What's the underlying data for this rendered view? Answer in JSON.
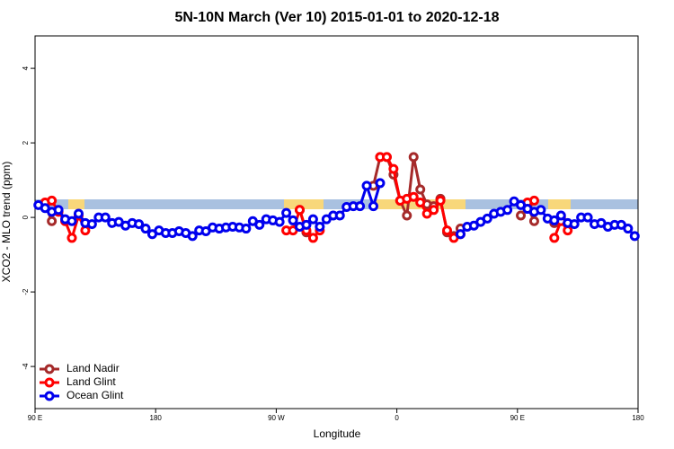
{
  "chart_data": {
    "type": "line",
    "title": "5N-10N March (Ver 10)   2015-01-01 to 2020-12-18",
    "x_label": "Longitude",
    "y_label": "XCO2 - MLO trend (ppm)",
    "xlim": [
      90,
      540
    ],
    "xticks": [
      {
        "value": 90,
        "label": "90 E"
      },
      180,
      {
        "value": 270,
        "label": "90 W"
      },
      {
        "value": 360,
        "label": "0"
      },
      {
        "value": 450,
        "label": "90 E"
      },
      {
        "value": 540,
        "label": "180"
      }
    ],
    "ylim": [
      -5.13,
      4.87
    ],
    "yticks": [
      -4,
      -2,
      0,
      2,
      4
    ],
    "legend": "bottomleft",
    "x": [
      92.5,
      97.5,
      102.5,
      107.5,
      112.5,
      117.5,
      122.5,
      127.5,
      132.5,
      137.5,
      142.5,
      147.5,
      152.5,
      157.5,
      162.5,
      167.5,
      172.5,
      177.5,
      182.5,
      187.5,
      192.5,
      197.5,
      202.5,
      207.5,
      212.5,
      217.5,
      222.5,
      227.5,
      232.5,
      237.5,
      242.5,
      247.5,
      252.5,
      257.5,
      262.5,
      267.5,
      272.5,
      277.5,
      282.5,
      287.5,
      292.5,
      297.5,
      302.5,
      307.5,
      312.5,
      317.5,
      322.5,
      327.5,
      332.5,
      337.5,
      342.5,
      347.5,
      352.5,
      357.5,
      362.5,
      367.5,
      372.5,
      377.5,
      382.5,
      387.5,
      392.5,
      397.5,
      402.5,
      407.5,
      412.5,
      417.5,
      422.5,
      427.5,
      432.5,
      437.5,
      442.5,
      447.5,
      452.5,
      457.5,
      462.5,
      467.5,
      472.5,
      477.5,
      482.5,
      487.5,
      492.5,
      497.5,
      502.5,
      507.5,
      512.5,
      517.5,
      522.5,
      527.5,
      532.5,
      537.5
    ],
    "series": [
      {
        "name": "Land Nadir",
        "color": "#a52a2a",
        "values": [
          null,
          0.35,
          -0.1,
          null,
          null,
          null,
          null,
          null,
          null,
          null,
          null,
          null,
          null,
          null,
          null,
          null,
          null,
          null,
          null,
          null,
          null,
          null,
          null,
          null,
          null,
          null,
          null,
          null,
          null,
          null,
          null,
          null,
          null,
          null,
          null,
          null,
          null,
          null,
          null,
          0.2,
          -0.4,
          null,
          null,
          null,
          null,
          null,
          null,
          null,
          null,
          null,
          0.85,
          1.62,
          1.62,
          1.15,
          0.45,
          0.05,
          1.62,
          0.75,
          0.35,
          0.3,
          0.5,
          -0.4,
          -0.5,
          -0.3,
          null,
          null,
          null,
          null,
          null,
          null,
          null,
          null,
          0.05,
          0.3,
          -0.1,
          null,
          null,
          -0.15,
          0,
          null,
          null,
          null,
          null,
          null,
          null,
          null,
          null,
          null,
          null,
          null
        ]
      },
      {
        "name": "Land Glint",
        "color": "#ff0000",
        "values": [
          null,
          0.4,
          0.45,
          0.15,
          -0.1,
          -0.55,
          0.05,
          -0.35,
          null,
          null,
          null,
          null,
          null,
          null,
          null,
          null,
          null,
          null,
          null,
          null,
          null,
          null,
          null,
          null,
          null,
          null,
          null,
          null,
          null,
          null,
          null,
          null,
          null,
          null,
          null,
          null,
          null,
          -0.35,
          -0.35,
          0.2,
          -0.35,
          -0.55,
          -0.35,
          null,
          null,
          null,
          null,
          null,
          null,
          null,
          null,
          1.62,
          1.62,
          1.3,
          0.45,
          0.5,
          0.55,
          0.4,
          0.1,
          0.2,
          0.45,
          -0.35,
          -0.55,
          -0.45,
          null,
          null,
          null,
          null,
          null,
          null,
          null,
          null,
          null,
          0.4,
          0.45,
          null,
          null,
          -0.55,
          -0.1,
          -0.35,
          null,
          null,
          null,
          null,
          null,
          null,
          null,
          null,
          null,
          null
        ]
      },
      {
        "name": "Ocean Glint",
        "color": "#0000ee",
        "values": [
          0.33,
          0.25,
          0.15,
          0.2,
          -0.05,
          -0.1,
          0.1,
          -0.15,
          -0.18,
          0,
          0,
          -0.15,
          -0.12,
          -0.22,
          -0.15,
          -0.18,
          -0.3,
          -0.45,
          -0.35,
          -0.42,
          -0.42,
          -0.37,
          -0.42,
          -0.5,
          -0.35,
          -0.37,
          -0.27,
          -0.3,
          -0.27,
          -0.25,
          -0.27,
          -0.3,
          -0.1,
          -0.2,
          -0.05,
          -0.08,
          -0.12,
          0.12,
          -0.08,
          -0.25,
          -0.2,
          -0.05,
          -0.25,
          -0.05,
          0.05,
          0.05,
          0.28,
          0.3,
          0.3,
          0.85,
          0.3,
          0.92,
          null,
          null,
          null,
          null,
          null,
          null,
          null,
          null,
          null,
          null,
          null,
          -0.45,
          -0.25,
          -0.22,
          -0.12,
          -0.03,
          0.1,
          0.15,
          0.2,
          0.43,
          0.33,
          0.23,
          0.15,
          0.2,
          -0.03,
          -0.08,
          0.05,
          -0.15,
          -0.18,
          0,
          0,
          -0.18,
          -0.15,
          -0.25,
          -0.2,
          -0.2,
          -0.3,
          -0.5
        ]
      }
    ]
  }
}
